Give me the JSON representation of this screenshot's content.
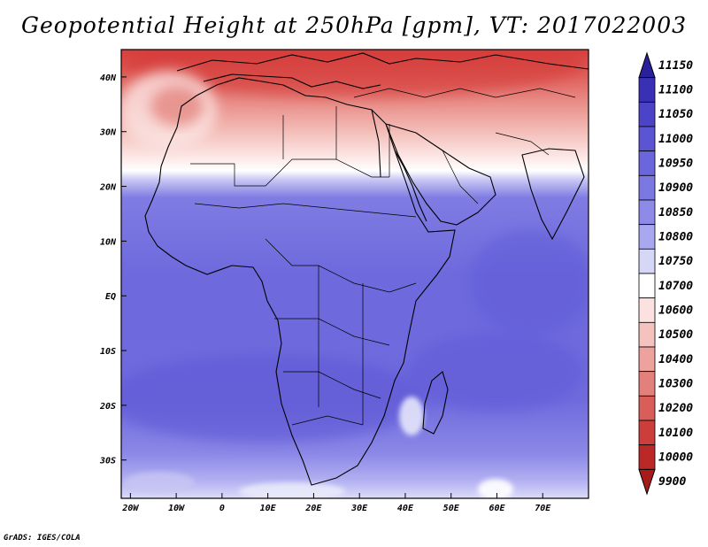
{
  "title": "Geopotential Height at 250hPa [gpm], VT: 2017022003",
  "credit": "GrADS: IGES/COLA",
  "map": {
    "lon_range": [
      -22,
      80
    ],
    "lat_range": [
      -37,
      45
    ],
    "lon_ticks": [
      {
        "value": -20,
        "label": "20W"
      },
      {
        "value": -10,
        "label": "10W"
      },
      {
        "value": 0,
        "label": "0"
      },
      {
        "value": 10,
        "label": "10E"
      },
      {
        "value": 20,
        "label": "20E"
      },
      {
        "value": 30,
        "label": "30E"
      },
      {
        "value": 40,
        "label": "40E"
      },
      {
        "value": 50,
        "label": "50E"
      },
      {
        "value": 60,
        "label": "60E"
      },
      {
        "value": 70,
        "label": "70E"
      }
    ],
    "lat_ticks": [
      {
        "value": 40,
        "label": "40N"
      },
      {
        "value": 30,
        "label": "30N"
      },
      {
        "value": 20,
        "label": "20N"
      },
      {
        "value": 10,
        "label": "10N"
      },
      {
        "value": 0,
        "label": "EQ"
      },
      {
        "value": -10,
        "label": "10S"
      },
      {
        "value": -20,
        "label": "20S"
      },
      {
        "value": -30,
        "label": "30S"
      }
    ]
  },
  "colorbar": {
    "levels": [
      11150,
      11100,
      11050,
      11000,
      10950,
      10900,
      10850,
      10800,
      10750,
      10700,
      10600,
      10500,
      10400,
      10300,
      10200,
      10100,
      10000,
      9900
    ],
    "colors": [
      "#2a1f9c",
      "#3a30b6",
      "#4c44c8",
      "#5b55d4",
      "#6a66dc",
      "#7b78e2",
      "#8d8ae8",
      "#a9a7ef",
      "#d6d6f7",
      "#ffffff",
      "#fbe2e0",
      "#f5c3bf",
      "#eda29d",
      "#e4807b",
      "#d95e5a",
      "#cc3e3c",
      "#bb2828",
      "#a71b1b"
    ]
  }
}
